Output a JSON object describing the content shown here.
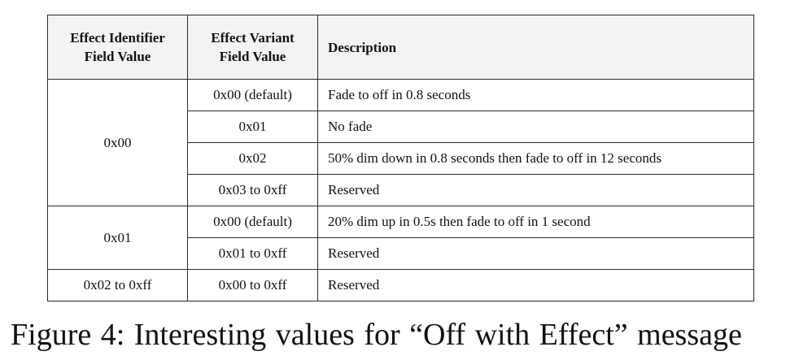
{
  "table": {
    "headers": {
      "identifier_line1": "Effect Identifier",
      "identifier_line2": "Field Value",
      "variant_line1": "Effect Variant",
      "variant_line2": "Field Value",
      "description": "Description"
    },
    "groups": [
      {
        "identifier": "0x00",
        "rows": [
          {
            "variant": "0x00 (default)",
            "description": "Fade to off in 0.8 seconds"
          },
          {
            "variant": "0x01",
            "description": "No fade"
          },
          {
            "variant": "0x02",
            "description": "50% dim down in 0.8 seconds then fade to off in 12 seconds"
          },
          {
            "variant": "0x03 to 0xff",
            "description": "Reserved"
          }
        ]
      },
      {
        "identifier": "0x01",
        "rows": [
          {
            "variant": "0x00 (default)",
            "description": "20% dim up in 0.5s then fade to off in 1 second"
          },
          {
            "variant": "0x01 to 0xff",
            "description": "Reserved"
          }
        ]
      },
      {
        "identifier": "0x02 to 0xff",
        "rows": [
          {
            "variant": "0x00 to 0xff",
            "description": "Reserved"
          }
        ]
      }
    ]
  },
  "caption": "Figure 4: Interesting values for “Off with Effect” message"
}
